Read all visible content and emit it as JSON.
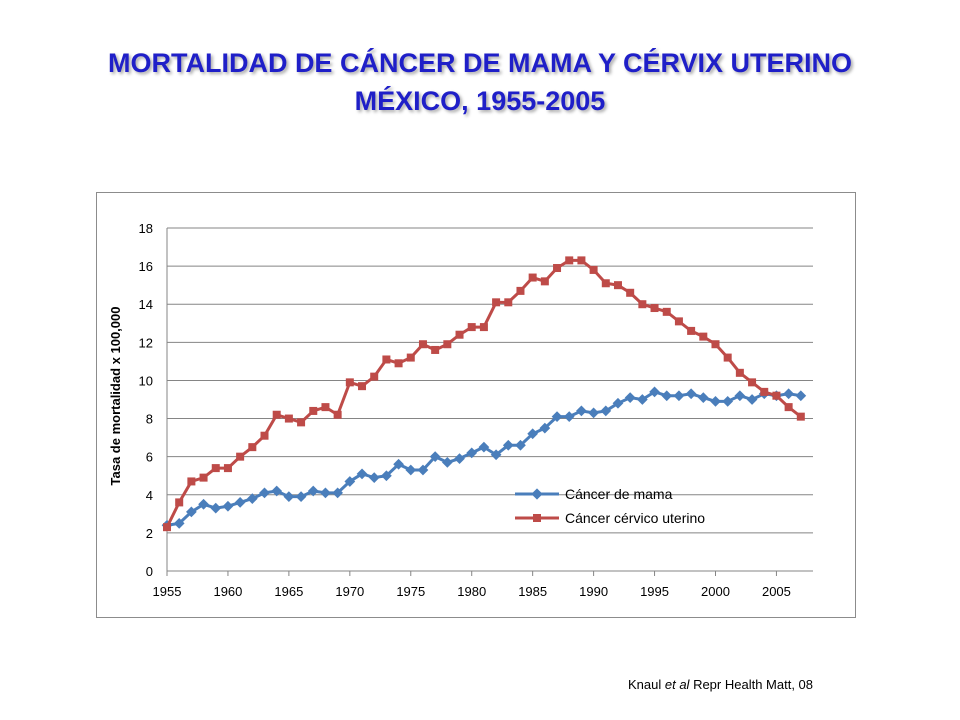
{
  "title": {
    "line1": "MORTALIDAD DE CÁNCER DE MAMA Y CÉRVIX UTERINO",
    "line2": "MÉXICO, 1955-2005"
  },
  "citation": {
    "author": "Knaul ",
    "etal": "et al",
    "source": " Repr Health Matt, 08"
  },
  "colors": {
    "title": "#1f1fc8",
    "mama": "#4a7ebb",
    "cervico": "#be4b48",
    "grid": "#858585"
  },
  "chart_data": {
    "type": "line",
    "ylabel": "Tasa de mortalidad x 100,000",
    "xlabel": "",
    "ylim": [
      0,
      18
    ],
    "xlim": [
      1955,
      2008
    ],
    "yticks": [
      0,
      2,
      4,
      6,
      8,
      10,
      12,
      14,
      16,
      18
    ],
    "xticks": [
      1955,
      1960,
      1965,
      1970,
      1975,
      1980,
      1985,
      1990,
      1995,
      2000,
      2005
    ],
    "grid": "horizontal",
    "legend_position": "bottom-right",
    "x": [
      1955,
      1956,
      1957,
      1958,
      1959,
      1960,
      1961,
      1962,
      1963,
      1964,
      1965,
      1966,
      1967,
      1968,
      1969,
      1970,
      1971,
      1972,
      1973,
      1974,
      1975,
      1976,
      1977,
      1978,
      1979,
      1980,
      1981,
      1982,
      1983,
      1984,
      1985,
      1986,
      1987,
      1988,
      1989,
      1990,
      1991,
      1992,
      1993,
      1994,
      1995,
      1996,
      1997,
      1998,
      1999,
      2000,
      2001,
      2002,
      2003,
      2004,
      2005,
      2006,
      2007
    ],
    "series": [
      {
        "name": "Cáncer de mama",
        "marker": "diamond",
        "values": [
          2.4,
          2.5,
          3.1,
          3.5,
          3.3,
          3.4,
          3.6,
          3.8,
          4.1,
          4.2,
          3.9,
          3.9,
          4.2,
          4.1,
          4.1,
          4.7,
          5.1,
          4.9,
          5.0,
          5.6,
          5.3,
          5.3,
          6.0,
          5.7,
          5.9,
          6.2,
          6.5,
          6.1,
          6.6,
          6.6,
          7.2,
          7.5,
          8.1,
          8.1,
          8.4,
          8.3,
          8.4,
          8.8,
          9.1,
          9.0,
          9.4,
          9.2,
          9.2,
          9.3,
          9.1,
          8.9,
          8.9,
          9.2,
          9.0,
          9.3,
          9.2,
          9.3,
          9.2
        ]
      },
      {
        "name": "Cáncer cérvico uterino",
        "marker": "square",
        "values": [
          2.3,
          3.6,
          4.7,
          4.9,
          5.4,
          5.4,
          6.0,
          6.5,
          7.1,
          8.2,
          8.0,
          7.8,
          8.4,
          8.6,
          8.2,
          9.9,
          9.7,
          10.2,
          11.1,
          10.9,
          11.2,
          11.9,
          11.6,
          11.9,
          12.4,
          12.8,
          12.8,
          14.1,
          14.1,
          14.7,
          15.4,
          15.2,
          15.9,
          16.3,
          16.3,
          15.8,
          15.1,
          15.0,
          14.6,
          14.0,
          13.8,
          13.6,
          13.1,
          12.6,
          12.3,
          11.9,
          11.2,
          10.4,
          9.9,
          9.4,
          9.2,
          8.6,
          8.1
        ]
      }
    ]
  }
}
